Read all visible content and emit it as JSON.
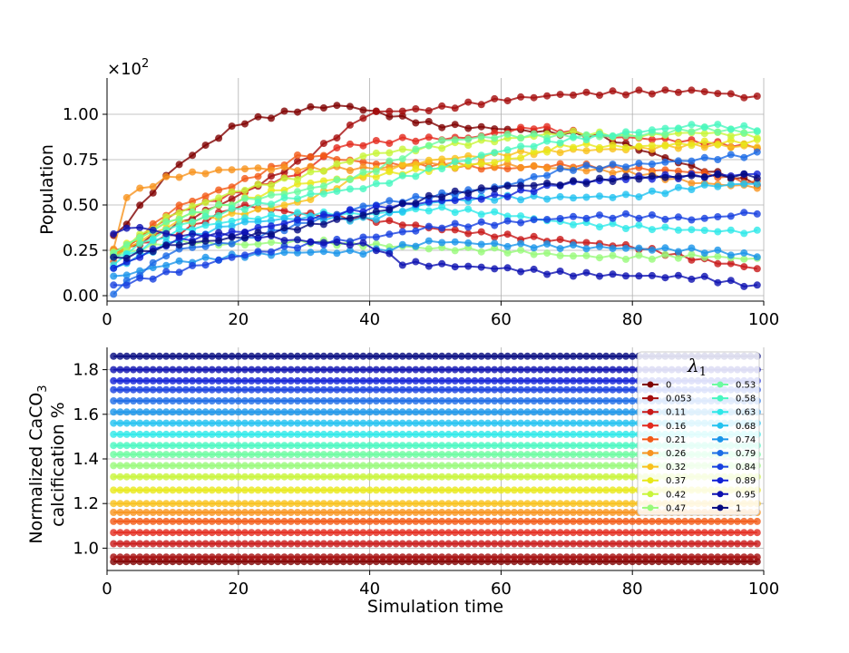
{
  "colors": {
    "palette": [
      "#7f0000",
      "#a50d0d",
      "#c81818",
      "#e32a1e",
      "#f25a17",
      "#f7931e",
      "#f9c21c",
      "#e8e81a",
      "#c8f53a",
      "#98fa7a",
      "#6cfba0",
      "#48f7c1",
      "#2ee8e8",
      "#22c2f0",
      "#1a95ea",
      "#1c6ce6",
      "#1640e0",
      "#1020d6",
      "#0c10b0",
      "#050a80"
    ],
    "grid": "#b0b0b0",
    "legend_border": "#cccccc"
  },
  "chart_data": [
    {
      "type": "line",
      "ylabel": "Population",
      "offset_label": "×10",
      "offset_exp": "2",
      "xlim": [
        0,
        100
      ],
      "ylim": [
        -0.03,
        1.2
      ],
      "yticks": [
        0.0,
        0.25,
        0.5,
        0.75,
        1.0
      ],
      "ytick_labels": [
        "0.00",
        "0.25",
        "0.50",
        "0.75",
        "1.00"
      ],
      "xticks": [
        0,
        20,
        40,
        60,
        80,
        100
      ],
      "xtick_labels": [
        "0",
        "20",
        "40",
        "60",
        "80",
        "100"
      ],
      "grid": true,
      "x_start": 1,
      "x_end": 99,
      "x_step": 2,
      "series": [
        {
          "color_index": 0,
          "anchors": [
            [
              1,
              0.32
            ],
            [
              10,
              0.7
            ],
            [
              20,
              0.95
            ],
            [
              30,
              1.03
            ],
            [
              36,
              1.05
            ],
            [
              45,
              0.98
            ],
            [
              50,
              0.94
            ],
            [
              60,
              0.92
            ],
            [
              75,
              0.88
            ],
            [
              90,
              0.7
            ],
            [
              99,
              0.62
            ]
          ]
        },
        {
          "color_index": 1,
          "anchors": [
            [
              1,
              0.22
            ],
            [
              10,
              0.38
            ],
            [
              20,
              0.55
            ],
            [
              30,
              0.75
            ],
            [
              40,
              1.01
            ],
            [
              50,
              1.03
            ],
            [
              60,
              1.08
            ],
            [
              70,
              1.11
            ],
            [
              80,
              1.12
            ],
            [
              90,
              1.13
            ],
            [
              99,
              1.09
            ]
          ]
        },
        {
          "color_index": 2,
          "anchors": [
            [
              1,
              0.25
            ],
            [
              10,
              0.33
            ],
            [
              20,
              0.5
            ],
            [
              30,
              0.45
            ],
            [
              40,
              0.42
            ],
            [
              50,
              0.37
            ],
            [
              60,
              0.33
            ],
            [
              70,
              0.3
            ],
            [
              80,
              0.27
            ],
            [
              90,
              0.2
            ],
            [
              99,
              0.15
            ]
          ]
        },
        {
          "color_index": 3,
          "anchors": [
            [
              1,
              0.22
            ],
            [
              10,
              0.45
            ],
            [
              20,
              0.57
            ],
            [
              30,
              0.68
            ],
            [
              35,
              0.82
            ],
            [
              45,
              0.86
            ],
            [
              55,
              0.87
            ],
            [
              65,
              0.93
            ],
            [
              75,
              0.88
            ],
            [
              85,
              0.86
            ],
            [
              99,
              0.82
            ]
          ]
        },
        {
          "color_index": 4,
          "anchors": [
            [
              1,
              0.2
            ],
            [
              10,
              0.48
            ],
            [
              20,
              0.62
            ],
            [
              30,
              0.78
            ],
            [
              40,
              0.73
            ],
            [
              50,
              0.72
            ],
            [
              60,
              0.7
            ],
            [
              70,
              0.72
            ],
            [
              80,
              0.7
            ],
            [
              90,
              0.68
            ],
            [
              99,
              0.62
            ]
          ]
        },
        {
          "color_index": 5,
          "anchors": [
            [
              1,
              0.25
            ],
            [
              3,
              0.55
            ],
            [
              10,
              0.66
            ],
            [
              20,
              0.7
            ],
            [
              30,
              0.7
            ],
            [
              40,
              0.7
            ],
            [
              50,
              0.73
            ],
            [
              60,
              0.72
            ],
            [
              70,
              0.7
            ],
            [
              80,
              0.68
            ],
            [
              90,
              0.62
            ],
            [
              99,
              0.6
            ]
          ]
        },
        {
          "color_index": 6,
          "anchors": [
            [
              1,
              0.22
            ],
            [
              10,
              0.4
            ],
            [
              20,
              0.45
            ],
            [
              30,
              0.52
            ],
            [
              40,
              0.68
            ],
            [
              50,
              0.75
            ],
            [
              60,
              0.78
            ],
            [
              70,
              0.8
            ],
            [
              80,
              0.81
            ],
            [
              90,
              0.83
            ],
            [
              99,
              0.82
            ]
          ]
        },
        {
          "color_index": 7,
          "anchors": [
            [
              1,
              0.24
            ],
            [
              10,
              0.42
            ],
            [
              20,
              0.52
            ],
            [
              30,
              0.62
            ],
            [
              40,
              0.66
            ],
            [
              50,
              0.7
            ],
            [
              60,
              0.74
            ],
            [
              70,
              0.83
            ],
            [
              80,
              0.82
            ],
            [
              90,
              0.84
            ],
            [
              99,
              0.85
            ]
          ]
        },
        {
          "color_index": 8,
          "anchors": [
            [
              1,
              0.23
            ],
            [
              10,
              0.45
            ],
            [
              20,
              0.58
            ],
            [
              30,
              0.66
            ],
            [
              40,
              0.78
            ],
            [
              50,
              0.82
            ],
            [
              60,
              0.86
            ],
            [
              70,
              0.9
            ],
            [
              80,
              0.88
            ],
            [
              90,
              0.9
            ],
            [
              99,
              0.88
            ]
          ]
        },
        {
          "color_index": 9,
          "anchors": [
            [
              1,
              0.22
            ],
            [
              10,
              0.3
            ],
            [
              20,
              0.28
            ],
            [
              30,
              0.3
            ],
            [
              40,
              0.28
            ],
            [
              50,
              0.26
            ],
            [
              60,
              0.25
            ],
            [
              70,
              0.22
            ],
            [
              80,
              0.21
            ],
            [
              90,
              0.22
            ],
            [
              99,
              0.2
            ]
          ]
        },
        {
          "color_index": 10,
          "anchors": [
            [
              1,
              0.24
            ],
            [
              10,
              0.42
            ],
            [
              20,
              0.52
            ],
            [
              30,
              0.58
            ],
            [
              40,
              0.68
            ],
            [
              50,
              0.85
            ],
            [
              60,
              0.88
            ],
            [
              70,
              0.88
            ],
            [
              80,
              0.88
            ],
            [
              90,
              0.92
            ],
            [
              99,
              0.9
            ]
          ]
        },
        {
          "color_index": 11,
          "anchors": [
            [
              1,
              0.2
            ],
            [
              10,
              0.38
            ],
            [
              20,
              0.48
            ],
            [
              30,
              0.55
            ],
            [
              40,
              0.6
            ],
            [
              50,
              0.7
            ],
            [
              60,
              0.8
            ],
            [
              70,
              0.86
            ],
            [
              80,
              0.9
            ],
            [
              90,
              0.94
            ],
            [
              99,
              0.92
            ]
          ]
        },
        {
          "color_index": 12,
          "anchors": [
            [
              1,
              0.18
            ],
            [
              10,
              0.35
            ],
            [
              20,
              0.42
            ],
            [
              30,
              0.45
            ],
            [
              40,
              0.45
            ],
            [
              50,
              0.48
            ],
            [
              60,
              0.45
            ],
            [
              70,
              0.4
            ],
            [
              80,
              0.38
            ],
            [
              90,
              0.36
            ],
            [
              99,
              0.35
            ]
          ]
        },
        {
          "color_index": 13,
          "anchors": [
            [
              1,
              0.15
            ],
            [
              10,
              0.3
            ],
            [
              20,
              0.4
            ],
            [
              30,
              0.43
            ],
            [
              40,
              0.42
            ],
            [
              50,
              0.52
            ],
            [
              60,
              0.54
            ],
            [
              70,
              0.54
            ],
            [
              80,
              0.55
            ],
            [
              90,
              0.6
            ],
            [
              99,
              0.62
            ]
          ]
        },
        {
          "color_index": 14,
          "anchors": [
            [
              1,
              0.1
            ],
            [
              10,
              0.18
            ],
            [
              20,
              0.22
            ],
            [
              30,
              0.24
            ],
            [
              40,
              0.24
            ],
            [
              50,
              0.3
            ],
            [
              60,
              0.28
            ],
            [
              70,
              0.27
            ],
            [
              80,
              0.26
            ],
            [
              90,
              0.25
            ],
            [
              99,
              0.22
            ]
          ]
        },
        {
          "color_index": 15,
          "anchors": [
            [
              1,
              0.02
            ],
            [
              10,
              0.25
            ],
            [
              20,
              0.3
            ],
            [
              30,
              0.4
            ],
            [
              40,
              0.5
            ],
            [
              50,
              0.55
            ],
            [
              60,
              0.6
            ],
            [
              70,
              0.7
            ],
            [
              80,
              0.72
            ],
            [
              90,
              0.75
            ],
            [
              99,
              0.78
            ]
          ]
        },
        {
          "color_index": 16,
          "anchors": [
            [
              1,
              0.05
            ],
            [
              10,
              0.13
            ],
            [
              20,
              0.22
            ],
            [
              30,
              0.28
            ],
            [
              40,
              0.32
            ],
            [
              50,
              0.38
            ],
            [
              60,
              0.4
            ],
            [
              70,
              0.43
            ],
            [
              80,
              0.44
            ],
            [
              90,
              0.42
            ],
            [
              99,
              0.46
            ]
          ]
        },
        {
          "color_index": 17,
          "anchors": [
            [
              1,
              0.15
            ],
            [
              10,
              0.3
            ],
            [
              20,
              0.35
            ],
            [
              30,
              0.42
            ],
            [
              40,
              0.48
            ],
            [
              50,
              0.52
            ],
            [
              60,
              0.55
            ],
            [
              70,
              0.62
            ],
            [
              80,
              0.65
            ],
            [
              90,
              0.66
            ],
            [
              99,
              0.67
            ]
          ]
        },
        {
          "color_index": 18,
          "anchors": [
            [
              1,
              0.35
            ],
            [
              5,
              0.38
            ],
            [
              10,
              0.33
            ],
            [
              20,
              0.34
            ],
            [
              30,
              0.3
            ],
            [
              40,
              0.28
            ],
            [
              45,
              0.18
            ],
            [
              50,
              0.17
            ],
            [
              60,
              0.15
            ],
            [
              70,
              0.12
            ],
            [
              80,
              0.11
            ],
            [
              90,
              0.1
            ],
            [
              99,
              0.05
            ]
          ]
        },
        {
          "color_index": 19,
          "anchors": [
            [
              1,
              0.2
            ],
            [
              10,
              0.28
            ],
            [
              20,
              0.32
            ],
            [
              30,
              0.38
            ],
            [
              40,
              0.45
            ],
            [
              50,
              0.55
            ],
            [
              60,
              0.6
            ],
            [
              70,
              0.62
            ],
            [
              80,
              0.65
            ],
            [
              90,
              0.66
            ],
            [
              99,
              0.66
            ]
          ]
        }
      ]
    },
    {
      "type": "line",
      "ylabel_line1_pre": "Normalized CaCO",
      "ylabel_line1_sub": "3",
      "ylabel_line2": "calcification %",
      "xlabel": "Simulation time",
      "xlim": [
        0,
        100
      ],
      "ylim": [
        0.9,
        1.9
      ],
      "yticks": [
        1.0,
        1.2,
        1.4,
        1.6,
        1.8
      ],
      "ytick_labels": [
        "1.0",
        "1.2",
        "1.4",
        "1.6",
        "1.8"
      ],
      "xticks": [
        0,
        20,
        40,
        60,
        80,
        100
      ],
      "xtick_labels": [
        "0",
        "20",
        "40",
        "60",
        "80",
        "100"
      ],
      "grid": true,
      "x_start": 1,
      "x_end": 99,
      "x_step": 1,
      "levels": [
        0.94,
        0.96,
        1.02,
        1.07,
        1.12,
        1.16,
        1.2,
        1.26,
        1.32,
        1.37,
        1.42,
        1.46,
        1.51,
        1.56,
        1.61,
        1.66,
        1.71,
        1.75,
        1.8,
        1.86
      ],
      "legend": {
        "title": "λ",
        "title_sub": "1",
        "location": "upper right",
        "labels": [
          "0",
          "0.053",
          "0.11",
          "0.16",
          "0.21",
          "0.26",
          "0.32",
          "0.37",
          "0.42",
          "0.47",
          "0.53",
          "0.58",
          "0.63",
          "0.68",
          "0.74",
          "0.79",
          "0.84",
          "0.89",
          "0.95",
          "1"
        ]
      }
    }
  ]
}
